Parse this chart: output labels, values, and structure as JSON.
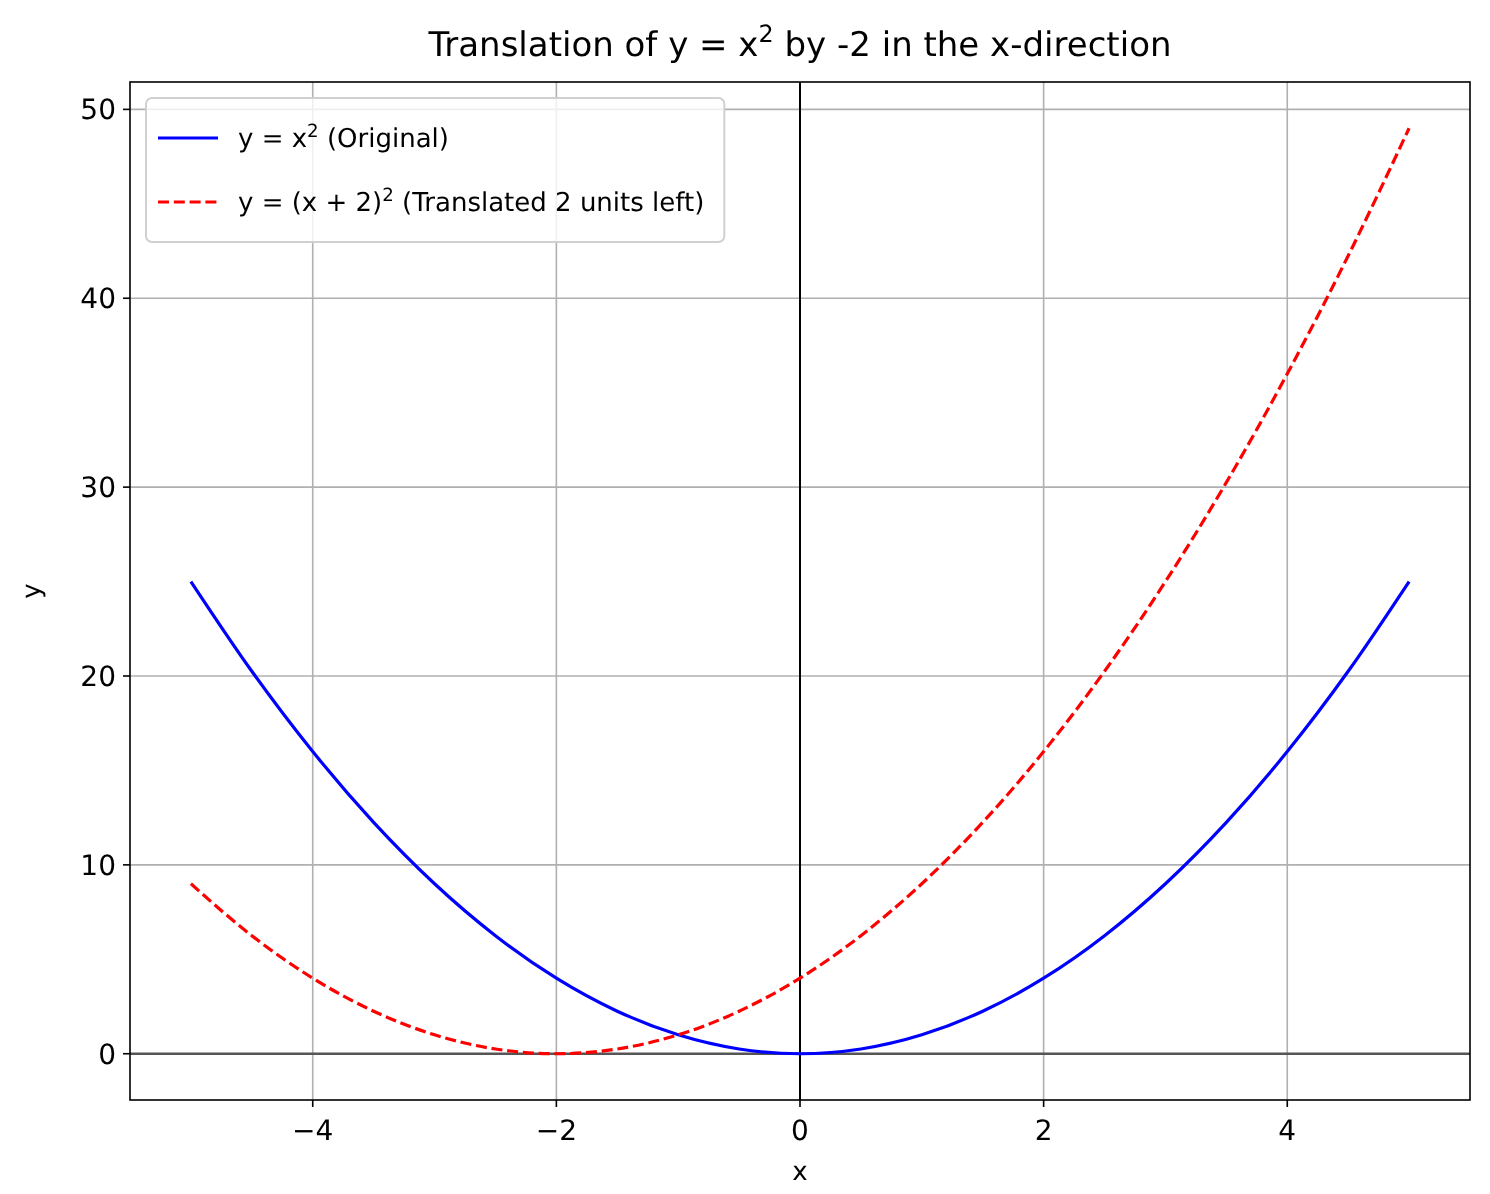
{
  "chart_data": {
    "type": "line",
    "title": "Translation of y = x$^{2}$ by -2 in the x-direction",
    "xlabel": "x",
    "ylabel": "y",
    "x": [
      -5,
      -4.5,
      -4,
      -3.5,
      -3,
      -2.5,
      -2,
      -1.5,
      -1,
      -0.5,
      0,
      0.5,
      1,
      1.5,
      2,
      2.5,
      3,
      3.5,
      4,
      4.5,
      5
    ],
    "series": [
      {
        "name": "y = x$^{2}$ (Original)",
        "color": "#0000ff",
        "line_style": "solid",
        "values": [
          25,
          20.25,
          16,
          12.25,
          9,
          6.25,
          4,
          2.25,
          1,
          0.25,
          0,
          0.25,
          1,
          2.25,
          4,
          6.25,
          9,
          12.25,
          16,
          20.25,
          25
        ]
      },
      {
        "name": "y = (x + 2)$^{2}$ (Translated 2 units left)",
        "color": "#ff0000",
        "line_style": "dashed",
        "values": [
          9,
          6.25,
          4,
          2.25,
          1,
          0.25,
          0,
          0.25,
          1,
          2.25,
          4,
          6.25,
          9,
          12.25,
          16,
          20.25,
          25,
          30.25,
          36,
          42.25,
          49
        ]
      }
    ],
    "xlim": [
      -5.5,
      5.5
    ],
    "ylim": [
      -2.45,
      51.45
    ],
    "xticks": [
      {
        "value": -4,
        "label": "−4"
      },
      {
        "value": -2,
        "label": "−2"
      },
      0,
      2,
      4
    ],
    "yticks": [
      0,
      10,
      20,
      30,
      40,
      50
    ],
    "ref_lines": [
      {
        "axis": "y",
        "value": 0,
        "color": "#555555"
      },
      {
        "axis": "x",
        "value": 0,
        "color": "#000000"
      }
    ],
    "grid": true,
    "legend": "top left"
  }
}
